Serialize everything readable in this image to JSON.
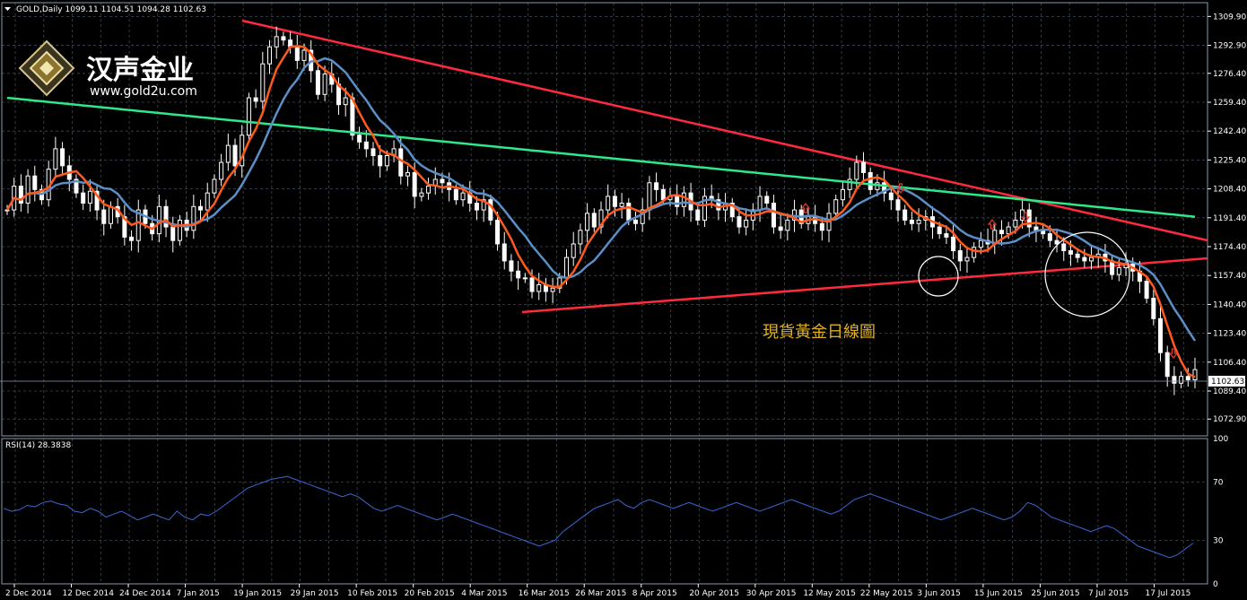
{
  "header": {
    "symbol_text": "GOLD,Daily  1099.11 1104.51 1094.28 1102.63",
    "rsi_text": "RSI(14) 28.3838"
  },
  "logo": {
    "brand_text": "汉声金业",
    "url_text": "www.gold2u.com"
  },
  "annotation_text": "現貨黃金日線圖",
  "price_tag": "1102.63",
  "colors": {
    "grid": "#3f4a55",
    "bull_candle": "#ffffff",
    "bear_candle": "#ffffff",
    "candle_wick": "#ffffff",
    "ma_fast": "#ff5a1e",
    "ma_mid": "#5b8fc7",
    "ma_long": "#2ee88a",
    "trendline": "#ff2a3d",
    "rsi_line": "#3a66d6",
    "annotation": "#e0b020",
    "marker": "#e23b2b"
  },
  "chart_data": [
    {
      "type": "candlestick",
      "title": "GOLD,Daily",
      "ohlc_last": {
        "open": 1099.11,
        "high": 1104.51,
        "low": 1094.28,
        "close": 1102.63
      },
      "ylim": [
        1063,
        1318
      ],
      "y_ticks": [
        "1309.90",
        "1292.90",
        "1276.40",
        "1259.40",
        "1242.40",
        "1225.40",
        "1208.40",
        "1191.40",
        "1174.40",
        "1157.40",
        "1140.40",
        "1123.40",
        "1106.40",
        "1089.40",
        "1072.90"
      ],
      "x_ticks": [
        "2 Dec 2014",
        "12 Dec 2014",
        "24 Dec 2014",
        "7 Jan 2015",
        "19 Jan 2015",
        "29 Jan 2015",
        "10 Feb 2015",
        "20 Feb 2015",
        "4 Mar 2015",
        "16 Mar 2015",
        "26 Mar 2015",
        "8 Apr 2015",
        "20 Apr 2015",
        "30 Apr 2015",
        "12 May 2015",
        "22 May 2015",
        "3 Jun 2015",
        "15 Jun 2015",
        "25 Jun 2015",
        "7 Jul 2015",
        "17 Jul 2015"
      ],
      "grid": true,
      "close_series": [
        1196,
        1210,
        1200,
        1216,
        1208,
        1202,
        1220,
        1232,
        1222,
        1214,
        1206,
        1200,
        1207,
        1196,
        1188,
        1198,
        1192,
        1180,
        1178,
        1196,
        1188,
        1182,
        1198,
        1186,
        1178,
        1190,
        1184,
        1198,
        1196,
        1206,
        1214,
        1224,
        1234,
        1222,
        1240,
        1262,
        1260,
        1282,
        1292,
        1298,
        1296,
        1292,
        1284,
        1290,
        1278,
        1264,
        1276,
        1270,
        1258,
        1262,
        1240,
        1236,
        1232,
        1228,
        1222,
        1228,
        1232,
        1216,
        1218,
        1204,
        1206,
        1210,
        1214,
        1212,
        1208,
        1202,
        1206,
        1200,
        1196,
        1202,
        1190,
        1176,
        1166,
        1160,
        1156,
        1156,
        1148,
        1152,
        1148,
        1150,
        1156,
        1168,
        1176,
        1184,
        1194,
        1186,
        1196,
        1204,
        1198,
        1200,
        1190,
        1188,
        1196,
        1212,
        1208,
        1202,
        1204,
        1198,
        1206,
        1196,
        1190,
        1204,
        1202,
        1196,
        1200,
        1192,
        1186,
        1190,
        1196,
        1204,
        1200,
        1186,
        1184,
        1190,
        1196,
        1188,
        1192,
        1188,
        1184,
        1194,
        1202,
        1208,
        1214,
        1224,
        1218,
        1208,
        1212,
        1206,
        1202,
        1196,
        1190,
        1188,
        1190,
        1192,
        1186,
        1182,
        1180,
        1172,
        1166,
        1168,
        1174,
        1178,
        1176,
        1184,
        1182,
        1186,
        1190,
        1196,
        1186,
        1184,
        1182,
        1178,
        1176,
        1172,
        1170,
        1168,
        1166,
        1168,
        1170,
        1166,
        1158,
        1162,
        1164,
        1160,
        1154,
        1144,
        1132,
        1112,
        1098,
        1094,
        1098,
        1096,
        1102
      ]
    },
    {
      "type": "line",
      "title": "RSI(14) 28.3838",
      "ylim": [
        0,
        100
      ],
      "y_ticks": [
        "100",
        "70",
        "30",
        "0"
      ],
      "values": [
        52,
        50,
        51,
        54,
        53,
        56,
        57,
        55,
        54,
        50,
        49,
        52,
        50,
        46,
        48,
        50,
        47,
        44,
        46,
        48,
        46,
        44,
        50,
        46,
        44,
        48,
        47,
        50,
        54,
        58,
        62,
        66,
        68,
        70,
        72,
        73,
        74,
        72,
        70,
        68,
        66,
        64,
        62,
        60,
        62,
        60,
        56,
        52,
        50,
        52,
        54,
        52,
        50,
        48,
        46,
        44,
        46,
        48,
        46,
        44,
        42,
        40,
        38,
        36,
        34,
        32,
        30,
        28,
        26,
        28,
        30,
        36,
        40,
        44,
        48,
        52,
        54,
        56,
        58,
        54,
        52,
        56,
        58,
        56,
        54,
        52,
        54,
        56,
        54,
        52,
        50,
        52,
        54,
        56,
        54,
        52,
        50,
        52,
        54,
        56,
        58,
        56,
        54,
        52,
        50,
        48,
        50,
        54,
        58,
        60,
        62,
        60,
        58,
        56,
        54,
        52,
        50,
        48,
        46,
        44,
        46,
        48,
        50,
        52,
        50,
        48,
        46,
        44,
        46,
        50,
        56,
        54,
        50,
        46,
        44,
        42,
        40,
        38,
        36,
        38,
        40,
        38,
        34,
        30,
        26,
        24,
        22,
        20,
        18,
        20,
        24,
        28
      ]
    }
  ]
}
